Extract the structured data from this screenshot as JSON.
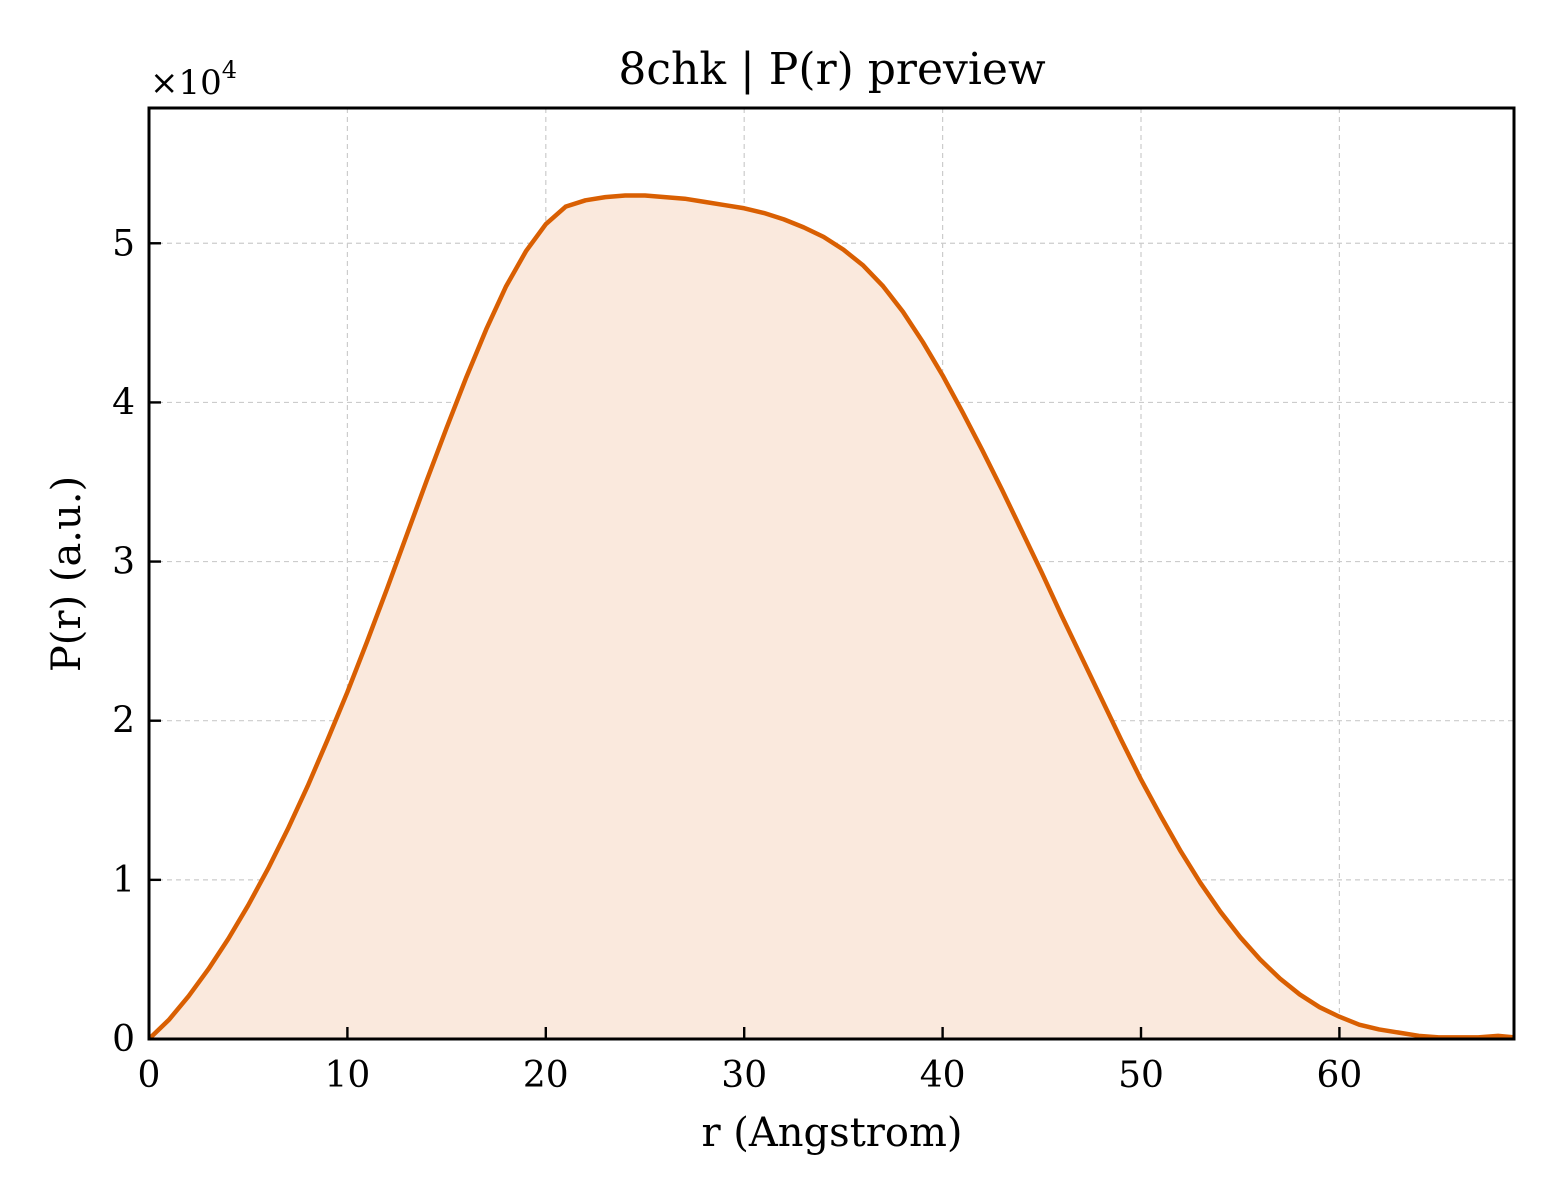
{
  "chart_data": {
    "type": "area",
    "title": "8chk | P(r) preview",
    "xlabel": "r (Angstrom)",
    "ylabel": "P(r) (a.u.)",
    "y_multiplier": {
      "base": "×10",
      "exponent": "4"
    },
    "xlim": [
      0,
      68.8
    ],
    "ylim": [
      0,
      5.85
    ],
    "y_scale_factor": 10000,
    "x_ticks": [
      0,
      10,
      20,
      30,
      40,
      50,
      60
    ],
    "x_tick_labels": [
      "0",
      "10",
      "20",
      "30",
      "40",
      "50",
      "60"
    ],
    "y_ticks": [
      0,
      1,
      2,
      3,
      4,
      5
    ],
    "y_tick_labels": [
      "0",
      "1",
      "2",
      "3",
      "4",
      "5"
    ],
    "grid": true,
    "line_color": "#d95f02",
    "fill_color": "#fae9dd",
    "series": [
      {
        "x": [
          0,
          1,
          2,
          3,
          4,
          5,
          6,
          7,
          8,
          9,
          10,
          11,
          12,
          13,
          14,
          15,
          16,
          17,
          18,
          19,
          20,
          21,
          22,
          23,
          24,
          25,
          26,
          27,
          28,
          29,
          30,
          31,
          32,
          33,
          34,
          35,
          36,
          37,
          38,
          39,
          40,
          41,
          42,
          43,
          44,
          45,
          46,
          47,
          48,
          49,
          50,
          51,
          52,
          53,
          54,
          55,
          56,
          57,
          58,
          59,
          60,
          61,
          62,
          63,
          64,
          65,
          66,
          67,
          68,
          68.8
        ],
        "y": [
          0.0,
          0.12,
          0.27,
          0.44,
          0.63,
          0.84,
          1.07,
          1.32,
          1.59,
          1.88,
          2.18,
          2.5,
          2.83,
          3.17,
          3.51,
          3.84,
          4.16,
          4.46,
          4.73,
          4.95,
          5.12,
          5.23,
          5.27,
          5.29,
          5.3,
          5.3,
          5.29,
          5.28,
          5.26,
          5.24,
          5.22,
          5.19,
          5.15,
          5.1,
          5.04,
          4.96,
          4.86,
          4.73,
          4.57,
          4.38,
          4.17,
          3.94,
          3.7,
          3.45,
          3.19,
          2.93,
          2.66,
          2.4,
          2.14,
          1.88,
          1.63,
          1.4,
          1.18,
          0.98,
          0.8,
          0.64,
          0.5,
          0.38,
          0.28,
          0.2,
          0.14,
          0.09,
          0.06,
          0.04,
          0.02,
          0.01,
          0.01,
          0.01,
          0.02,
          0.01
        ]
      }
    ]
  }
}
